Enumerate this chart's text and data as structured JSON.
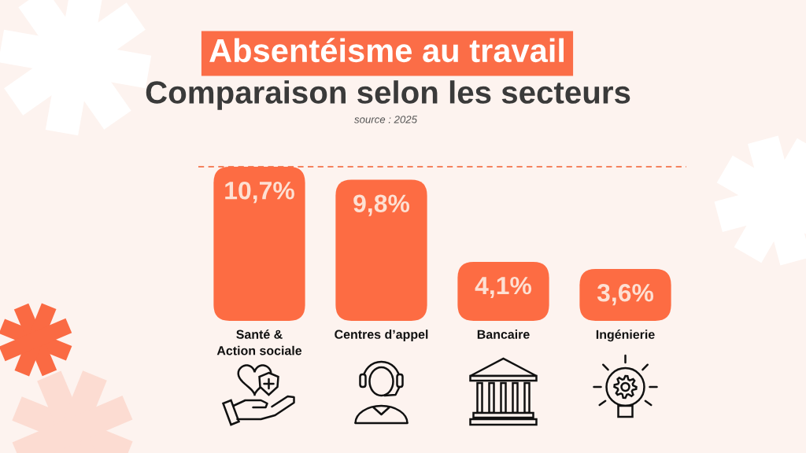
{
  "chart_data": {
    "type": "bar",
    "title": "Absentéisme au travail",
    "subtitle": "Comparaison selon les secteurs",
    "annotations": [
      "source : 2025"
    ],
    "categories": [
      "Santé &\nAction sociale",
      "Centres d’appel",
      "Bancaire",
      "Ingénierie"
    ],
    "values": [
      10.7,
      9.8,
      4.1,
      3.6
    ],
    "color": "#fd6c43",
    "value_labels": [
      "10,7%",
      "9,8%",
      "4,1%",
      "3,6%"
    ],
    "ref_lines": [
      {
        "axis": "y",
        "value": 10.7,
        "color": "#f4825e",
        "line_style": "dashed"
      }
    ],
    "tick_labels": "x"
  }
}
